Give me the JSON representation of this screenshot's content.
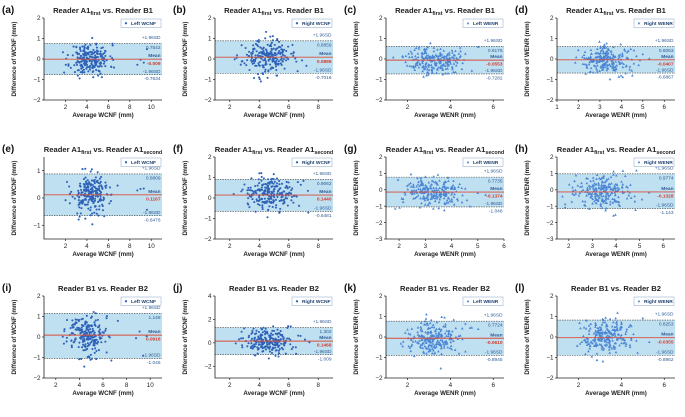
{
  "chart_data": [
    {
      "panel": "(a)",
      "type": "scatter",
      "title_parts": [
        {
          "t": "Reader A1"
        },
        {
          "t": "first",
          "sub": true
        },
        {
          "t": " vs. Reader B1"
        }
      ],
      "xlabel": "Average WCNF (mm)",
      "ylabel": "Difference of WCNF (mm)",
      "xlim": [
        0,
        11
      ],
      "ylim": [
        -2,
        2
      ],
      "xticks": [
        2,
        4,
        6,
        8,
        10
      ],
      "yticks": [
        -2,
        -1,
        0,
        1,
        2
      ],
      "legend": "Left WCNF",
      "upper_label": "+1.96SD",
      "upper_value": "0.7542",
      "upper": 0.7542,
      "mean_label": "Mean",
      "mean_value": "-0.009",
      "mean": -0.009,
      "lower_label": "-1.96SD",
      "lower_value": "-0.7634",
      "lower": -0.7634,
      "cx": 4.3,
      "sx": 0.9,
      "xmax_pt": 9.6,
      "sd": 0.38,
      "seed": 11
    },
    {
      "panel": "(b)",
      "type": "scatter",
      "title_parts": [
        {
          "t": "Reader A1"
        },
        {
          "t": "first",
          "sub": true
        },
        {
          "t": " vs. Reader B1"
        }
      ],
      "xlabel": "Average WCNF (mm)",
      "ylabel": "Difference of WCNF (mm)",
      "xlim": [
        1,
        9
      ],
      "ylim": [
        -2,
        2
      ],
      "xticks": [
        2,
        4,
        6,
        8
      ],
      "yticks": [
        -2,
        -1,
        0,
        1,
        2
      ],
      "legend": "Right WCNF",
      "upper_label": "+1.96SD",
      "upper_value": "0.8859",
      "upper": 0.8859,
      "mean_label": "Mean",
      "mean_value": "0.0896",
      "mean": 0.0896,
      "lower_label": "-1.96SD",
      "lower_value": "-0.7016",
      "lower": -0.7016,
      "cx": 4.5,
      "sx": 0.8,
      "xmax_pt": 7.2,
      "sd": 0.4,
      "seed": 23
    },
    {
      "panel": "(c)",
      "type": "scatter",
      "title_parts": [
        {
          "t": "Reader A1"
        },
        {
          "t": "first",
          "sub": true
        },
        {
          "t": " vs. Reader B1"
        }
      ],
      "xlabel": "Average WENR (mm)",
      "ylabel": "Difference of WENR (mm)",
      "xlim": [
        1,
        6.5
      ],
      "ylim": [
        -2,
        2
      ],
      "xticks": [
        2,
        4,
        6
      ],
      "yticks": [
        -2,
        -1,
        0,
        1,
        2
      ],
      "legend": "Left WENR",
      "upper_label": "+1.96SD",
      "upper_value": "0.6175",
      "upper": 0.6175,
      "mean_label": "Mean",
      "mean_value": "-0.0553",
      "mean": -0.0553,
      "lower_label": "-1.96SD",
      "lower_value": "-0.7282",
      "lower": -0.7282,
      "cx": 3.2,
      "sx": 0.6,
      "xmax_pt": 5.3,
      "sd": 0.34,
      "seed": 37
    },
    {
      "panel": "(d)",
      "type": "scatter",
      "title_parts": [
        {
          "t": "Reader A1"
        },
        {
          "t": "first",
          "sub": true
        },
        {
          "t": " vs. Reader B1"
        }
      ],
      "xlabel": "Average WENR (mm)",
      "ylabel": "Difference of WENR (mm)",
      "xlim": [
        1,
        6.5
      ],
      "ylim": [
        -2,
        2
      ],
      "xticks": [
        1,
        2,
        3,
        4,
        5,
        6
      ],
      "yticks": [
        -2,
        -1,
        0,
        1,
        2
      ],
      "legend": "Right WENR",
      "upper_label": "+1.96SD",
      "upper_value": "0.6053",
      "upper": 0.6053,
      "mean_label": "Mean",
      "mean_value": "-0.0407",
      "mean": -0.0407,
      "lower_label": "-1.96SD",
      "lower_value": "-0.6867",
      "lower": -0.6867,
      "cx": 3.3,
      "sx": 0.6,
      "xmax_pt": 5.3,
      "sd": 0.33,
      "seed": 41
    },
    {
      "panel": "(e)",
      "type": "scatter",
      "title_parts": [
        {
          "t": "Reader A1"
        },
        {
          "t": "first",
          "sub": true
        },
        {
          "t": " vs. Reader A1"
        },
        {
          "t": "second",
          "sub": true
        }
      ],
      "xlabel": "Average WCNF (mm)",
      "ylabel": "Difference of WCNF (mm)",
      "xlim": [
        0,
        11
      ],
      "ylim": [
        -1.5,
        1.5
      ],
      "xticks": [
        2,
        4,
        6,
        8,
        10
      ],
      "yticks": [
        -1,
        0,
        1
      ],
      "legend": "Left WCNF",
      "upper_label": "+1.96SD",
      "upper_value": "0.8809",
      "upper": 0.8809,
      "mean_label": "Mean",
      "mean_value": "0.1167",
      "mean": 0.1167,
      "lower_label": "-1.96SD",
      "lower_value": "-0.6476",
      "lower": -0.6476,
      "cx": 4.4,
      "sx": 0.9,
      "xmax_pt": 9.6,
      "sd": 0.38,
      "seed": 53
    },
    {
      "panel": "(f)",
      "type": "scatter",
      "title_parts": [
        {
          "t": "Reader A1"
        },
        {
          "t": "first",
          "sub": true
        },
        {
          "t": " vs. Reader A1"
        },
        {
          "t": "second",
          "sub": true
        }
      ],
      "xlabel": "Average WCNF (mm)",
      "ylabel": "Difference of WCNF (mm)",
      "xlim": [
        1,
        9
      ],
      "ylim": [
        -2,
        2
      ],
      "xticks": [
        2,
        4,
        6,
        8
      ],
      "yticks": [
        -2,
        -1,
        0,
        1,
        2
      ],
      "legend": "Right WCNF",
      "upper_label": "+1.96SD",
      "upper_value": "0.9062",
      "upper": 0.9062,
      "mean_label": "Mean",
      "mean_value": "0.1440",
      "mean": 0.144,
      "lower_label": "-1.96SD",
      "lower_value": "-0.6481",
      "lower": -0.6481,
      "cx": 4.6,
      "sx": 0.8,
      "xmax_pt": 7.3,
      "sd": 0.4,
      "seed": 67
    },
    {
      "panel": "(g)",
      "type": "scatter",
      "title_parts": [
        {
          "t": "Reader A1"
        },
        {
          "t": "first",
          "sub": true
        },
        {
          "t": " vs. Reader A1"
        },
        {
          "t": "second",
          "sub": true
        }
      ],
      "xlabel": "Average WENR (mm)",
      "ylabel": "Difference of WENR (mm)",
      "xlim": [
        1.5,
        6
      ],
      "ylim": [
        -3,
        2
      ],
      "xticks": [
        2,
        3,
        4,
        5,
        6
      ],
      "yticks": [
        -3,
        -2,
        -1,
        0,
        1,
        2
      ],
      "legend": "Left WENR",
      "upper_label": "+1.96SD",
      "upper_value": "0.7735",
      "upper": 0.7735,
      "mean_label": "Mean",
      "mean_value": "-0.1374",
      "mean": -0.1374,
      "lower_label": "-1.96SD",
      "lower_value": "-1.048",
      "lower": -1.048,
      "cx": 3.3,
      "sx": 0.6,
      "xmax_pt": 5.3,
      "sd": 0.46,
      "seed": 71
    },
    {
      "panel": "(h)",
      "type": "scatter",
      "title_parts": [
        {
          "t": "Reader A1"
        },
        {
          "t": "first",
          "sub": true
        },
        {
          "t": " vs. Reader A1"
        },
        {
          "t": "second",
          "sub": true
        }
      ],
      "xlabel": "Average WENR (mm)",
      "ylabel": "Difference of WENR (mm)",
      "xlim": [
        1.5,
        6.5
      ],
      "ylim": [
        -3,
        2
      ],
      "xticks": [
        2,
        3,
        4,
        5,
        6
      ],
      "yticks": [
        -3,
        -2,
        -1,
        0,
        1,
        2
      ],
      "legend": "Right WENR",
      "upper_label": "+1.96SD",
      "upper_value": "0.9774",
      "upper": 0.9774,
      "mean_label": "Mean",
      "mean_value": "-0.1328",
      "mean": -0.1328,
      "lower_label": "-1.96SD",
      "lower_value": "-1.143",
      "lower": -1.143,
      "cx": 3.4,
      "sx": 0.6,
      "xmax_pt": 5.4,
      "sd": 0.52,
      "seed": 83
    },
    {
      "panel": "(i)",
      "type": "scatter",
      "title_parts": [
        {
          "t": "Reader B1 vs. Reader B2"
        }
      ],
      "xlabel": "Average WCNF (mm)",
      "ylabel": "Difference of WCNF (mm)",
      "xlim": [
        1,
        11
      ],
      "ylim": [
        -2,
        2
      ],
      "xticks": [
        2,
        4,
        6,
        8,
        10
      ],
      "yticks": [
        -2,
        -1,
        0,
        1,
        2
      ],
      "legend": "Left WCNF",
      "upper_label": "+1.96SD",
      "upper_value": "1.148",
      "upper": 1.148,
      "mean_label": "Mean",
      "mean_value": "0.0916",
      "mean": 0.0916,
      "lower_label": "-1.96SD",
      "lower_value": "-1.045",
      "lower": -1.045,
      "cx": 4.5,
      "sx": 0.9,
      "xmax_pt": 9.7,
      "sd": 0.52,
      "seed": 97
    },
    {
      "panel": "(j)",
      "type": "scatter",
      "title_parts": [
        {
          "t": "Reader B1 vs. Reader B2"
        }
      ],
      "xlabel": "Average WCNF (mm)",
      "ylabel": "Difference of WCNF (mm)",
      "xlim": [
        1,
        9
      ],
      "ylim": [
        -3,
        4
      ],
      "xticks": [
        2,
        4,
        6,
        8
      ],
      "yticks": [
        -2,
        0,
        2,
        4
      ],
      "legend": "Right WCNF",
      "upper_label": "+1.96SD",
      "upper_value": "1.302",
      "upper": 1.302,
      "mean_label": "Mean",
      "mean_value": "0.1468",
      "mean": 0.1468,
      "lower_label": "-1.96SD",
      "lower_value": "-1.009",
      "lower": -1.009,
      "cx": 4.6,
      "sx": 0.8,
      "xmax_pt": 7.4,
      "sd": 0.55,
      "seed": 101
    },
    {
      "panel": "(k)",
      "type": "scatter",
      "title_parts": [
        {
          "t": "Reader B1 vs. Reader B2"
        }
      ],
      "xlabel": "Average WENR (mm)",
      "ylabel": "Difference of WENR (mm)",
      "xlim": [
        1,
        6.5
      ],
      "ylim": [
        -2,
        2
      ],
      "xticks": [
        2,
        4,
        6
      ],
      "yticks": [
        -2,
        -1,
        0,
        1,
        2
      ],
      "legend": "Left WENR",
      "upper_label": "+1.96SD",
      "upper_value": "0.7724",
      "upper": 0.7724,
      "mean_label": "Mean",
      "mean_value": "-0.0610",
      "mean": -0.061,
      "lower_label": "-1.96SD",
      "lower_value": "-0.8945",
      "lower": -0.8945,
      "cx": 3.2,
      "sx": 0.6,
      "xmax_pt": 5.3,
      "sd": 0.42,
      "seed": 113
    },
    {
      "panel": "(l)",
      "type": "scatter",
      "title_parts": [
        {
          "t": "Reader B1 vs. Reader B2"
        }
      ],
      "xlabel": "Average WENR (mm)",
      "ylabel": "Difference of WENR (mm)",
      "xlim": [
        1,
        6.5
      ],
      "ylim": [
        -2,
        2
      ],
      "xticks": [
        2,
        4,
        6
      ],
      "yticks": [
        -2,
        -1,
        0,
        1,
        2
      ],
      "legend": "Right WENR",
      "upper_label": "+1.96SD",
      "upper_value": "0.8253",
      "upper": 0.8253,
      "mean_label": "Mean",
      "mean_value": "-0.0355",
      "mean": -0.0355,
      "lower_label": "-1.96SD",
      "lower_value": "-0.8962",
      "lower": -0.8962,
      "cx": 3.3,
      "sx": 0.6,
      "xmax_pt": 5.3,
      "sd": 0.43,
      "seed": 127
    }
  ],
  "colors": {
    "band": "#bfe0f0",
    "mean_line": "#d94c3a",
    "marker_circle": "#2f63b8",
    "marker_triangle": "#4a86d4",
    "text_blue": "#2f5b95",
    "legend_border": "#8aa6c8"
  }
}
